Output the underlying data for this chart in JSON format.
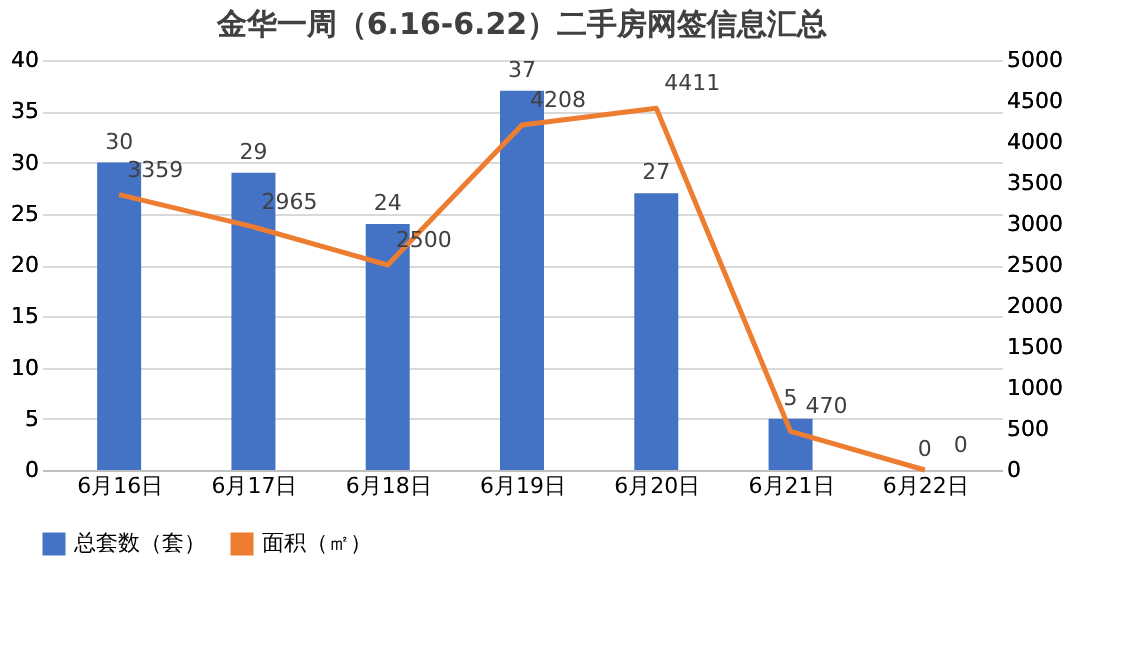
{
  "chart_data": {
    "type": "bar",
    "title": "金华一周（6.16-6.22）二手房网签信息汇总",
    "categories": [
      "6月16日",
      "6月17日",
      "6月18日",
      "6月19日",
      "6月20日",
      "6月21日",
      "6月22日"
    ],
    "series": [
      {
        "name": "总套数（套）",
        "color": "#4472c4",
        "values": [
          30,
          29,
          24,
          37,
          27,
          5,
          0
        ]
      },
      {
        "name": "面积（㎡）",
        "color": "#ed7d31",
        "type": "line",
        "axis": "y2",
        "values": [
          3359,
          2965,
          2500,
          4208,
          4411,
          470,
          0
        ]
      }
    ],
    "ylim": [
      0,
      40
    ],
    "yticks": [
      0,
      5,
      10,
      15,
      20,
      25,
      30,
      35,
      40
    ],
    "y2lim": [
      0,
      5000
    ],
    "y2ticks": [
      0,
      500,
      1000,
      1500,
      2000,
      2500,
      3000,
      3500,
      4000,
      4500,
      5000
    ],
    "grid": "y",
    "legend": "bottom",
    "data_labels": true,
    "marker": "none",
    "line_style": "solid"
  }
}
